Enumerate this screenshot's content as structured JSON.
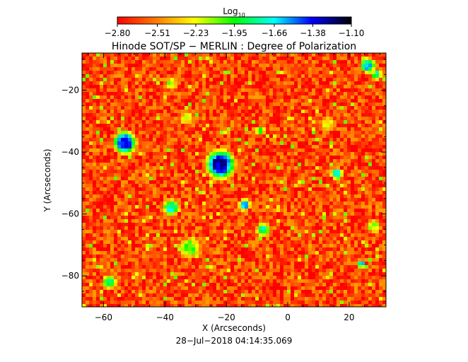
{
  "chart_data": {
    "type": "heatmap",
    "title": "Hinode SOT/SP − MERLIN : Degree of Polarization",
    "xlabel": "X (Arcseconds)",
    "ylabel": "Y (Arcseconds)",
    "timestamp": "28−Jul−2018 04:14:35.069",
    "xlim": [
      -67,
      32
    ],
    "ylim": [
      -90,
      -8
    ],
    "x_ticks": [
      -60,
      -40,
      -20,
      0,
      20
    ],
    "y_ticks": [
      -20,
      -40,
      -60,
      -80
    ],
    "x_tick_labels": [
      "−60",
      "−40",
      "−20",
      "0",
      "20"
    ],
    "y_tick_labels": [
      "−20",
      "−40",
      "−60",
      "−80"
    ],
    "colorbar": {
      "label_main": "Log",
      "label_sub": "10",
      "scale": "log10",
      "vmin": -2.8,
      "vmax": -1.1,
      "ticks": [
        -2.8,
        -2.51,
        -2.23,
        -1.95,
        -1.66,
        -1.38,
        -1.1
      ],
      "tick_labels": [
        "−2.80",
        "−2.51",
        "−2.23",
        "−1.95",
        "−1.66",
        "−1.38",
        "−1.10"
      ],
      "colormap": [
        "#ff0000",
        "#ff7f00",
        "#ffff00",
        "#00ff00",
        "#00ffff",
        "#0000ff",
        "#000000"
      ]
    },
    "background_level": -2.65,
    "features": [
      {
        "x": -53,
        "y": -37,
        "level": -1.35,
        "radius": 2.5
      },
      {
        "x": -22,
        "y": -44,
        "level": -1.3,
        "radius": 3.2
      },
      {
        "x": -38,
        "y": -58,
        "level": -1.75,
        "radius": 1.8
      },
      {
        "x": -14,
        "y": -57,
        "level": -1.55,
        "radius": 1.3
      },
      {
        "x": -32,
        "y": -71,
        "level": -2.0,
        "radius": 2.2
      },
      {
        "x": -58,
        "y": -82,
        "level": -1.9,
        "radius": 1.6
      },
      {
        "x": 16,
        "y": -47,
        "level": -1.7,
        "radius": 1.3
      },
      {
        "x": 26,
        "y": -12,
        "level": -1.6,
        "radius": 1.6
      },
      {
        "x": 29,
        "y": -15,
        "level": -1.8,
        "radius": 1.2
      },
      {
        "x": -38,
        "y": -18,
        "level": -2.1,
        "radius": 1.3
      },
      {
        "x": -8,
        "y": -65,
        "level": -1.8,
        "radius": 1.5
      },
      {
        "x": 24,
        "y": -76,
        "level": -1.6,
        "radius": 0.8
      },
      {
        "x": -9,
        "y": -33,
        "level": -1.9,
        "radius": 1.0
      },
      {
        "x": -33,
        "y": -29,
        "level": -2.2,
        "radius": 1.5
      },
      {
        "x": 13,
        "y": -31,
        "level": -2.25,
        "radius": 1.6
      },
      {
        "x": 28,
        "y": -64,
        "level": -2.1,
        "radius": 1.5
      }
    ]
  }
}
